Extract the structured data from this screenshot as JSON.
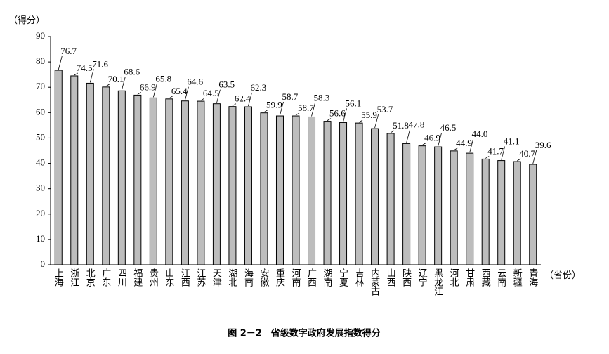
{
  "chart_data": {
    "type": "bar",
    "title": "图 2－2　省级数字政府发展指数得分",
    "y_label": "（得分）",
    "x_label": "（省份）",
    "categories": [
      "上海",
      "浙江",
      "北京",
      "广东",
      "四川",
      "福建",
      "贵州",
      "山东",
      "江西",
      "江苏",
      "天津",
      "湖北",
      "海南",
      "安徽",
      "重庆",
      "河南",
      "广西",
      "湖南",
      "宁夏",
      "吉林",
      "内蒙古",
      "山西",
      "陕西",
      "辽宁",
      "黑龙江",
      "河北",
      "甘肃",
      "西藏",
      "云南",
      "新疆",
      "青海"
    ],
    "values": [
      76.7,
      74.5,
      71.6,
      70.1,
      68.6,
      66.9,
      65.8,
      65.4,
      64.6,
      64.5,
      63.5,
      62.4,
      62.3,
      59.9,
      58.7,
      58.7,
      58.3,
      56.6,
      56.1,
      55.9,
      53.7,
      51.8,
      47.8,
      46.9,
      46.5,
      44.9,
      44.0,
      41.7,
      41.1,
      40.7,
      39.6
    ],
    "value_labels": [
      "76.7",
      "74.5",
      "71.6",
      "70.1",
      "68.6",
      "66.9",
      "65.8",
      "65.4",
      "64.6",
      "64.5",
      "63.5",
      "62.4",
      "62.3",
      "59.9",
      "58.7",
      "58.7",
      "58.3",
      "56.6",
      "56.1",
      "55.9",
      "53.7",
      "51.8",
      "47.8",
      "46.9",
      "46.5",
      "44.9",
      "44.0",
      "41.7",
      "41.1",
      "40.7",
      "39.6"
    ],
    "color": "#bdbdbd",
    "ylim": [
      0,
      90
    ],
    "yticks": [
      0,
      10,
      20,
      30,
      40,
      50,
      60,
      70,
      80,
      90
    ],
    "grid": false
  }
}
